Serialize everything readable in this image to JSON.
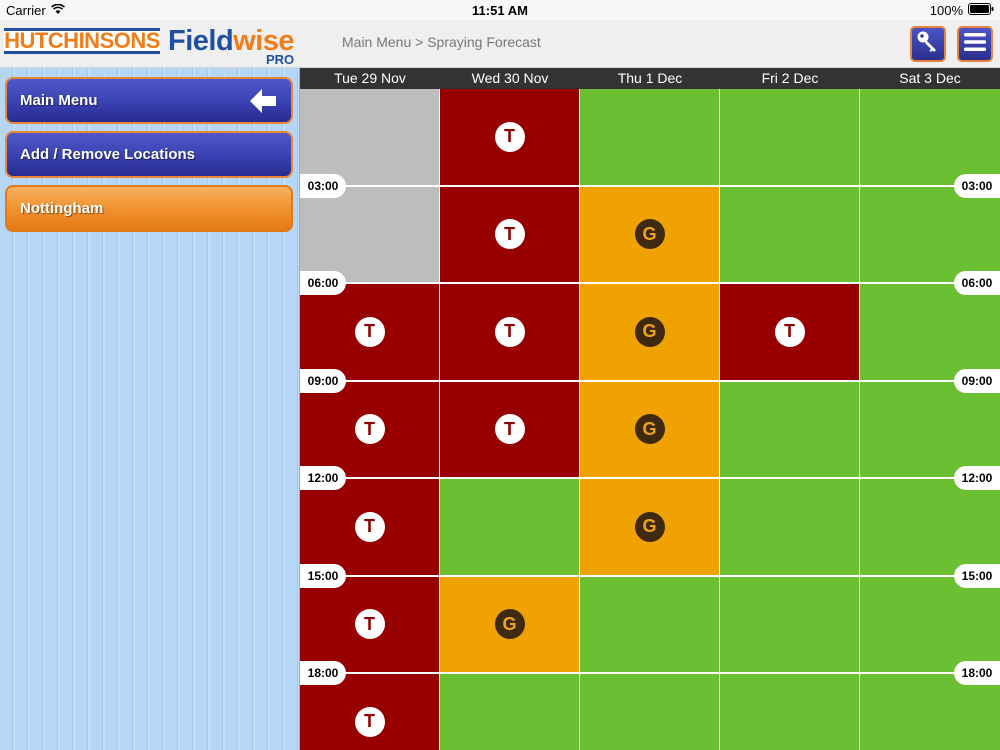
{
  "status_bar": {
    "carrier": "Carrier",
    "time": "11:51 AM",
    "battery": "100%"
  },
  "header": {
    "logo_hutchinsons": "HUTCHINSONS",
    "logo_field": "Field",
    "logo_wise": "wise",
    "logo_pro": "PRO",
    "breadcrumb": "Main Menu > Spraying Forecast",
    "key_icon": "key-icon",
    "menu_icon": "hamburger-menu-icon"
  },
  "sidebar": {
    "items": [
      {
        "label": "Main Menu",
        "style": "blue",
        "icon": "back-arrow-icon"
      },
      {
        "label": "Add / Remove Locations",
        "style": "blue"
      },
      {
        "label": "Nottingham",
        "style": "orange"
      }
    ]
  },
  "forecast": {
    "days": [
      "Tue 29 Nov",
      "Wed 30 Nov",
      "Thu 1 Dec",
      "Fri 2 Dec",
      "Sat 3 Dec"
    ],
    "time_labels": [
      "03:00",
      "06:00",
      "09:00",
      "12:00",
      "15:00",
      "18:00"
    ],
    "legend": {
      "T": {
        "color": "#980000",
        "badge": "T"
      },
      "G": {
        "color": "#f0a202",
        "badge": "G"
      },
      "N": {
        "color": "#6bbf33",
        "badge": ""
      },
      "X": {
        "color": "#bdbdbd",
        "badge": ""
      }
    },
    "rows": [
      [
        "X",
        "T",
        "N",
        "N",
        "N"
      ],
      [
        "X",
        "T",
        "G",
        "N",
        "N"
      ],
      [
        "T",
        "T",
        "G",
        "T",
        "N"
      ],
      [
        "T",
        "T",
        "G",
        "N",
        "N"
      ],
      [
        "T",
        "N",
        "G",
        "N",
        "N"
      ],
      [
        "T",
        "G",
        "N",
        "N",
        "N"
      ],
      [
        "T",
        "N",
        "N",
        "N",
        "N"
      ]
    ]
  }
}
